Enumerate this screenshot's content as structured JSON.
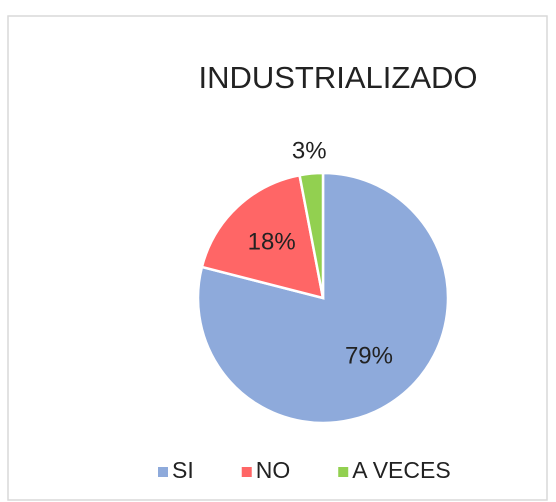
{
  "chart_data": {
    "type": "pie",
    "title": "INDUSTRIALIZADO",
    "categories": [
      "SI",
      "NO",
      "A VECES"
    ],
    "values": [
      79,
      18,
      3
    ],
    "value_labels": [
      "79%",
      "18%",
      "3%"
    ],
    "colors": [
      "#8eaadb",
      "#ff6666",
      "#92d050"
    ],
    "legend": "bottom"
  }
}
